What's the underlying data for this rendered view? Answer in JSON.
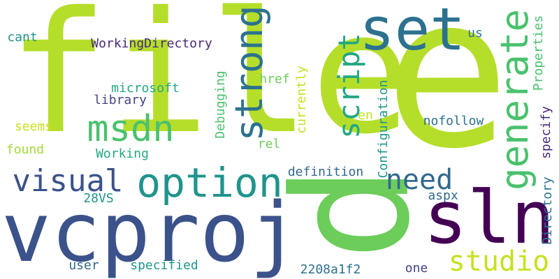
{
  "words": {
    "file": "file",
    "e": "e",
    "p": "p",
    "vcproj": "vcproj",
    "sln": "sln",
    "set": "set",
    "option": "option",
    "msdn": "msdn",
    "strong": "strong",
    "generate": "generate",
    "visual": "visual",
    "need": "need",
    "script": "script",
    "studio": "studio",
    "WorkingDirectory": "WorkingDirectory",
    "cant": "cant",
    "microsoft": "microsoft",
    "library": "library",
    "seems": "seems",
    "found": "found",
    "Working": "Working",
    "href": "href",
    "Debugging": "Debugging",
    "currently": "currently",
    "rel": "rel",
    "en": "en",
    "Configuration": "Configuration",
    "us": "us",
    "Properties": "Properties",
    "nofollow": "nofollow",
    "specify": "specify",
    "definition": "definition",
    "28VS": "28VS",
    "aspx": "aspx",
    "Directory": "Directory",
    "user": "user",
    "specified": "specified",
    "2208a1f2": "2208a1f2",
    "one": "one"
  },
  "palette": {
    "lime": "#b5de2b",
    "green": "#6ccd5a",
    "teal": "#2a9c8a",
    "blue": "#2c728e",
    "navy": "#3b528b",
    "indigo": "#414487",
    "deep_purple": "#440154",
    "yellow": "#c8e020",
    "background": "#ffffff"
  }
}
